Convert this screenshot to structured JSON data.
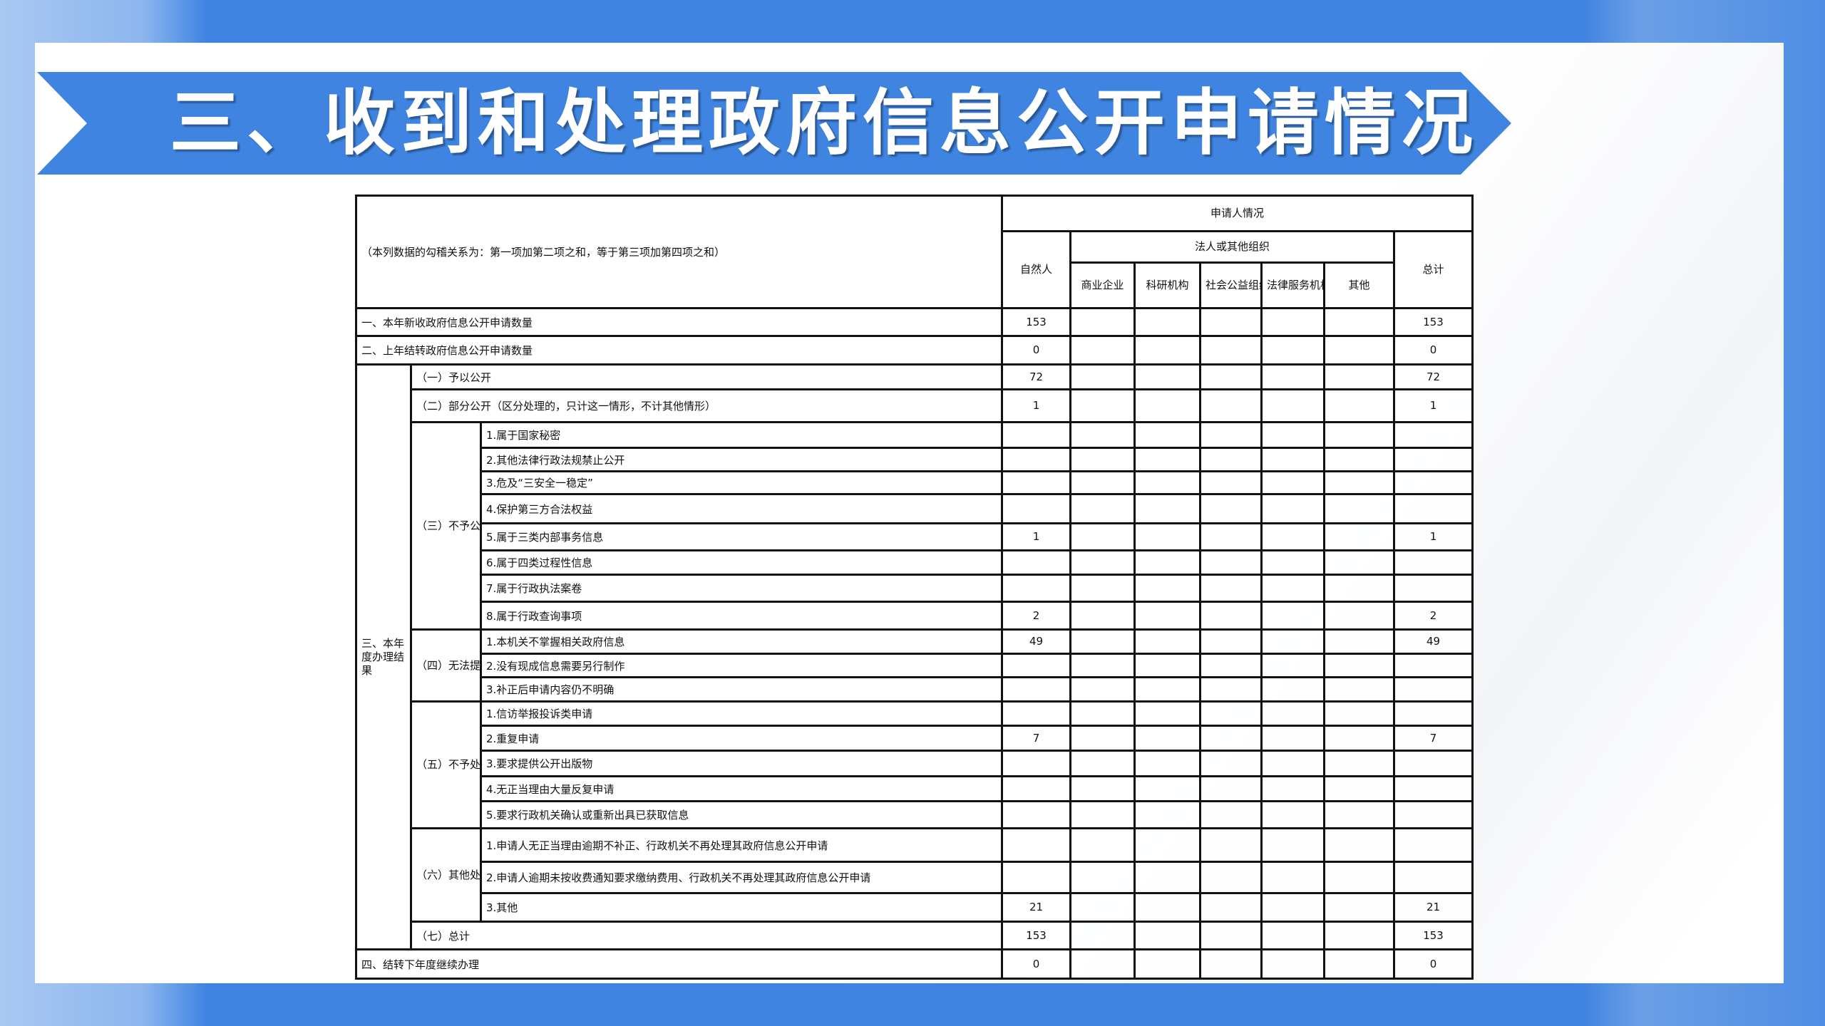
{
  "title": "三、收到和处理政府信息公开申请情况",
  "colors": {
    "background": "#3f84e0",
    "banner": "#3f84e0",
    "panel": "#ffffff"
  },
  "header": {
    "note": "（本列数据的勾稽关系为：第一项加第二项之和，等于第三项加第四项之和）",
    "applicant": "申请人情况",
    "natural_person": "自然人",
    "legal_org": "法人或其他组织",
    "orgs": [
      "商业企业",
      "科研机构",
      "社会公益组织",
      "法律服务机构",
      "其他"
    ],
    "total": "总计"
  },
  "rows": [
    {
      "label": "一、本年新收政府信息公开申请数量",
      "values": [
        "153",
        "",
        "",
        "",
        "",
        "",
        "153"
      ]
    },
    {
      "label": "二、上年结转政府信息公开申请数量",
      "values": [
        "0",
        "",
        "",
        "",
        "",
        "",
        "0"
      ]
    }
  ],
  "result_group": {
    "label": "三、本年度办理结果",
    "children": [
      {
        "label": "（一）予以公开",
        "values": [
          "72",
          "",
          "",
          "",
          "",
          "",
          "72"
        ]
      },
      {
        "label": "（二）部分公开（区分处理的，只计这一情形，不计其他情形）",
        "values": [
          "1",
          "",
          "",
          "",
          "",
          "",
          "1"
        ]
      },
      {
        "label": "（三）不予公开",
        "items": [
          {
            "label": "1.属于国家秘密",
            "values": [
              "",
              "",
              "",
              "",
              "",
              "",
              ""
            ]
          },
          {
            "label": "2.其他法律行政法规禁止公开",
            "values": [
              "",
              "",
              "",
              "",
              "",
              "",
              ""
            ]
          },
          {
            "label": "3.危及“三安全一稳定”",
            "values": [
              "",
              "",
              "",
              "",
              "",
              "",
              ""
            ]
          },
          {
            "label": "4.保护第三方合法权益",
            "values": [
              "",
              "",
              "",
              "",
              "",
              "",
              ""
            ]
          },
          {
            "label": "5.属于三类内部事务信息",
            "values": [
              "1",
              "",
              "",
              "",
              "",
              "",
              "1"
            ]
          },
          {
            "label": "6.属于四类过程性信息",
            "values": [
              "",
              "",
              "",
              "",
              "",
              "",
              ""
            ]
          },
          {
            "label": "7.属于行政执法案卷",
            "values": [
              "",
              "",
              "",
              "",
              "",
              "",
              ""
            ]
          },
          {
            "label": "8.属于行政查询事项",
            "values": [
              "2",
              "",
              "",
              "",
              "",
              "",
              "2"
            ]
          }
        ]
      },
      {
        "label": "（四）无法提供",
        "items": [
          {
            "label": "1.本机关不掌握相关政府信息",
            "values": [
              "49",
              "",
              "",
              "",
              "",
              "",
              "49"
            ]
          },
          {
            "label": "2.没有现成信息需要另行制作",
            "values": [
              "",
              "",
              "",
              "",
              "",
              "",
              ""
            ]
          },
          {
            "label": "3.补正后申请内容仍不明确",
            "values": [
              "",
              "",
              "",
              "",
              "",
              "",
              ""
            ]
          }
        ]
      },
      {
        "label": "（五）不予处理",
        "items": [
          {
            "label": "1.信访举报投诉类申请",
            "values": [
              "",
              "",
              "",
              "",
              "",
              "",
              ""
            ]
          },
          {
            "label": "2.重复申请",
            "values": [
              "7",
              "",
              "",
              "",
              "",
              "",
              "7"
            ]
          },
          {
            "label": "3.要求提供公开出版物",
            "values": [
              "",
              "",
              "",
              "",
              "",
              "",
              ""
            ]
          },
          {
            "label": "4.无正当理由大量反复申请",
            "values": [
              "",
              "",
              "",
              "",
              "",
              "",
              ""
            ]
          },
          {
            "label": "5.要求行政机关确认或重新出具已获取信息",
            "values": [
              "",
              "",
              "",
              "",
              "",
              "",
              ""
            ]
          }
        ]
      },
      {
        "label": "（六）其他处理",
        "items": [
          {
            "label": "1.申请人无正当理由逾期不补正、行政机关不再处理其政府信息公开申请",
            "values": [
              "",
              "",
              "",
              "",
              "",
              "",
              ""
            ]
          },
          {
            "label": "2.申请人逾期未按收费通知要求缴纳费用、行政机关不再处理其政府信息公开申请",
            "values": [
              "",
              "",
              "",
              "",
              "",
              "",
              ""
            ]
          },
          {
            "label": "3.其他",
            "values": [
              "21",
              "",
              "",
              "",
              "",
              "",
              "21"
            ]
          }
        ]
      },
      {
        "label": "（七）总计",
        "values": [
          "153",
          "",
          "",
          "",
          "",
          "",
          "153"
        ]
      }
    ]
  },
  "footer_row": {
    "label": "四、结转下年度继续办理",
    "values": [
      "0",
      "",
      "",
      "",
      "",
      "",
      "0"
    ]
  }
}
